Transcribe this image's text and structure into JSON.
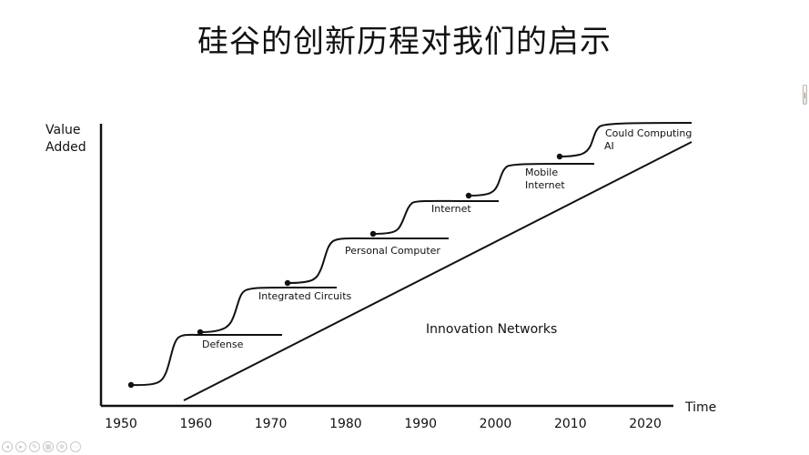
{
  "slide": {
    "title": "硅谷的创新历程对我们的启示"
  },
  "chart_data": {
    "type": "line",
    "y_axis_label_line1": "Value",
    "y_axis_label_line2": "Added",
    "x_axis_label": "Time",
    "x_ticks": [
      "1950",
      "1960",
      "1970",
      "1980",
      "1990",
      "2000",
      "2010",
      "2020"
    ],
    "trend_line_label": "Innovation Networks",
    "stages": [
      {
        "label": "Defense",
        "start_year": 1951,
        "end_year": 1972
      },
      {
        "label": "Integrated Circuits",
        "start_year": 1960,
        "end_year": 1979
      },
      {
        "label": "Personal Computer",
        "start_year": 1972,
        "end_year": 1994
      },
      {
        "label": "Internet",
        "start_year": 1984,
        "end_year": 2000
      },
      {
        "label": "Mobile Internet",
        "start_year": 1997,
        "end_year": 2013
      },
      {
        "label": "Could Computing AI",
        "start_year": 2009,
        "end_year": 2027
      }
    ]
  },
  "player_controls": [
    {
      "icon": "prev-icon",
      "glyph": "◂"
    },
    {
      "icon": "play-icon",
      "glyph": "▸"
    },
    {
      "icon": "pen-icon",
      "glyph": "✎"
    },
    {
      "icon": "slides-icon",
      "glyph": "▦"
    },
    {
      "icon": "zoom-icon",
      "glyph": "⊕"
    },
    {
      "icon": "more-icon",
      "glyph": "⋯"
    }
  ]
}
